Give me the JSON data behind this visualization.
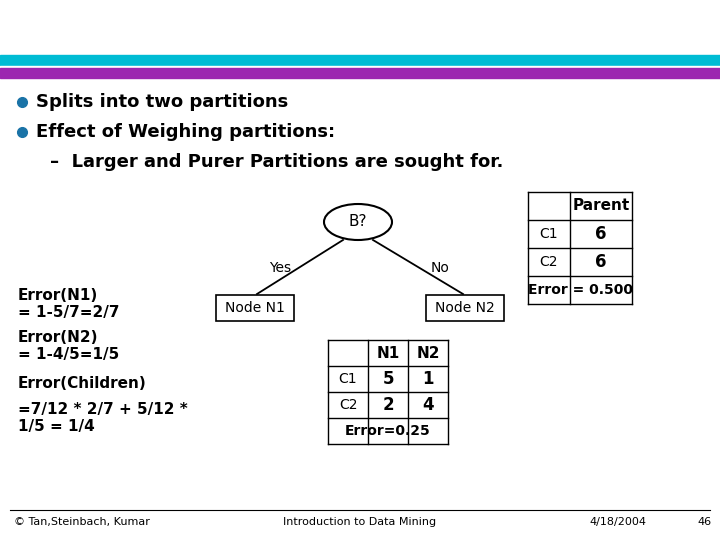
{
  "bg_color": "#ffffff",
  "bar1_color": "#00bcd4",
  "bar2_color": "#9c27b0",
  "bullet_color": "#1a73a7",
  "text_color": "#000000",
  "bullet1": "Splits into two partitions",
  "bullet2": "Effect of Weighing partitions:",
  "sub_bullet": "Larger and Purer Partitions are sought for.",
  "tree_node_label": "B?",
  "yes_label": "Yes",
  "no_label": "No",
  "node_n1": "Node N1",
  "node_n2": "Node N2",
  "error_n1_line1": "Error(N1)",
  "error_n1_line2": "= 1-5/7=2/7",
  "error_n2_line1": "Error(N2)",
  "error_n2_line2": "= 1-4/5=1/5",
  "error_children": "Error(Children)",
  "error_formula_line1": "=7/12 * 2/7 + 5/12 *",
  "error_formula_line2": "1/5 = 1/4",
  "parent_headers": [
    "",
    "Parent"
  ],
  "parent_rows": [
    [
      "C1",
      "6"
    ],
    [
      "C2",
      "6"
    ]
  ],
  "parent_error": "Error = 0.500",
  "child_headers": [
    "",
    "N1",
    "N2"
  ],
  "child_rows": [
    [
      "C1",
      "5",
      "1"
    ],
    [
      "C2",
      "2",
      "4"
    ]
  ],
  "child_error": "Error=0.25",
  "footer_left": "© Tan,Steinbach, Kumar",
  "footer_center": "Introduction to Data Mining",
  "footer_right": "4/18/2004",
  "footer_page": "46"
}
